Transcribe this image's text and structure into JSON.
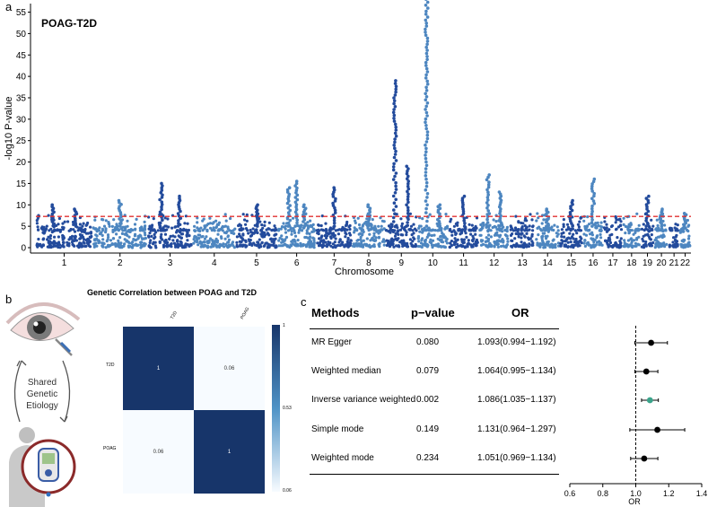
{
  "panel_a": {
    "letter": "a",
    "title": "POAG-T2D",
    "threshold": 7.3,
    "colors": {
      "dark": "#234b9c",
      "light": "#4d86c0",
      "threshold": "#e03030"
    }
  },
  "panel_b": {
    "letter": "b",
    "heatmap_title": "Genetic Correlation between POAG and T2D",
    "etiology_label": [
      "Shared",
      "Genetic",
      "Etiology"
    ],
    "colors": {
      "strong": "#17356a",
      "weak": "#f7fbff"
    },
    "heatmap": {
      "col_labels": [
        "T2D",
        "POAG"
      ],
      "row_labels": [
        "T2D",
        "POAG"
      ],
      "values": [
        [
          "1",
          "0.06"
        ],
        [
          "0.06",
          "1"
        ]
      ],
      "colorbar_ticks": [
        "1",
        "0.53",
        "0.06"
      ]
    }
  },
  "panel_c": {
    "letter": "c",
    "headers": {
      "method": "Methods",
      "pvalue": "p−value",
      "or": "OR"
    },
    "rows": [
      {
        "method": "MR Egger",
        "pvalue": "0.080",
        "or_text": "1.093(0.994−1.192)"
      },
      {
        "method": "Weighted median",
        "pvalue": "0.079",
        "or_text": "1.064(0.995−1.134)"
      },
      {
        "method": "Inverse variance weighted",
        "pvalue": "0.002",
        "or_text": "1.086(1.035−1.137)"
      },
      {
        "method": "Simple mode",
        "pvalue": "0.149",
        "or_text": "1.131(0.964−1.297)"
      },
      {
        "method": "Weighted mode",
        "pvalue": "0.234",
        "or_text": "1.051(0.969−1.134)"
      }
    ],
    "highlight_color": "#3aa38a"
  },
  "chart_data": [
    {
      "type": "scatter",
      "title": "POAG-T2D",
      "xlabel": "Chromosome",
      "ylabel": "-log10 P-value",
      "ylim": [
        0,
        57
      ],
      "yticks": [
        0,
        5,
        10,
        15,
        20,
        25,
        30,
        35,
        40,
        45,
        50,
        55
      ],
      "categories": [
        "1",
        "2",
        "3",
        "4",
        "5",
        "6",
        "7",
        "8",
        "9",
        "10",
        "11",
        "12",
        "13",
        "14",
        "15",
        "16",
        "17",
        "18",
        "19",
        "20",
        "21",
        "22"
      ],
      "chromosome_sizes": [
        249,
        243,
        198,
        191,
        182,
        171,
        159,
        146,
        141,
        136,
        135,
        134,
        115,
        107,
        102,
        90,
        84,
        81,
        59,
        64,
        47,
        51
      ],
      "peaks": [
        {
          "chr": "1",
          "values": [
            10,
            9
          ]
        },
        {
          "chr": "2",
          "values": [
            11
          ]
        },
        {
          "chr": "3",
          "values": [
            15,
            12
          ]
        },
        {
          "chr": "5",
          "values": [
            10
          ]
        },
        {
          "chr": "6",
          "values": [
            14,
            15.5,
            10
          ]
        },
        {
          "chr": "7",
          "values": [
            14
          ]
        },
        {
          "chr": "8",
          "values": [
            10
          ]
        },
        {
          "chr": "9",
          "values": [
            39,
            19
          ]
        },
        {
          "chr": "10",
          "values": [
            58,
            10
          ]
        },
        {
          "chr": "11",
          "values": [
            12
          ]
        },
        {
          "chr": "12",
          "values": [
            17,
            13
          ]
        },
        {
          "chr": "14",
          "values": [
            9
          ]
        },
        {
          "chr": "15",
          "values": [
            11
          ]
        },
        {
          "chr": "16",
          "values": [
            16
          ]
        },
        {
          "chr": "19",
          "values": [
            12
          ]
        },
        {
          "chr": "20",
          "values": [
            9
          ]
        },
        {
          "chr": "22",
          "values": [
            8
          ]
        }
      ],
      "threshold": 7.3
    },
    {
      "type": "scatter",
      "title": "",
      "xlabel": "OR",
      "ylabel": "",
      "xlim": [
        0.6,
        1.4
      ],
      "xticks": [
        0.6,
        0.8,
        1.0,
        1.2,
        1.4
      ],
      "xtick_labels": [
        "0.6",
        "0.8",
        "1.0",
        "1.2",
        "1.4"
      ],
      "reference": 1.0,
      "categories": [
        "MR Egger",
        "Weighted median",
        "Inverse variance weighted",
        "Simple mode",
        "Weighted mode"
      ],
      "or": [
        1.093,
        1.064,
        1.086,
        1.131,
        1.051
      ],
      "lower": [
        0.994,
        0.995,
        1.035,
        0.964,
        0.969
      ],
      "upper": [
        1.192,
        1.134,
        1.137,
        1.297,
        1.134
      ]
    }
  ]
}
